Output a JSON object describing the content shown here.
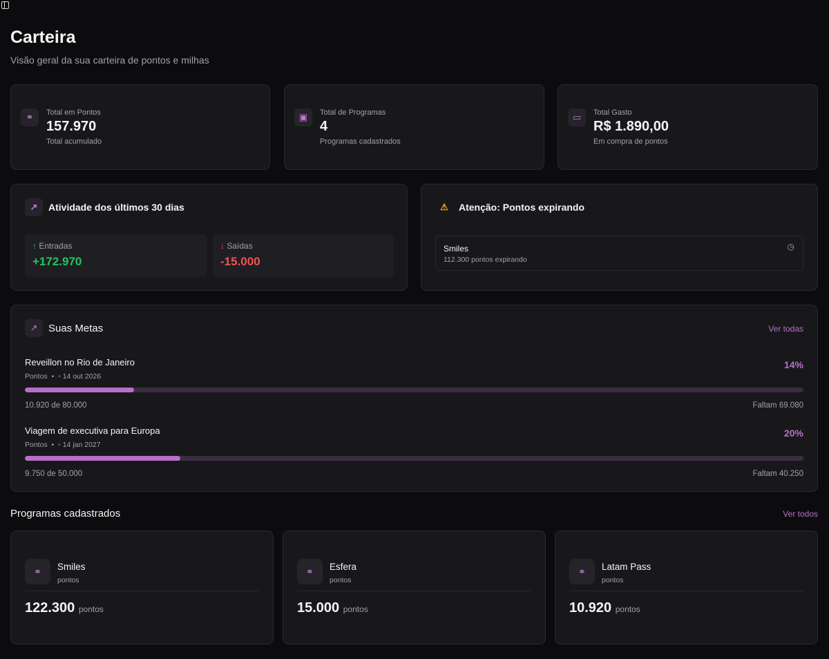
{
  "page": {
    "title": "Carteira",
    "subtitle": "Visão geral da sua carteira de pontos e milhas"
  },
  "stats": [
    {
      "label": "Total em Pontos",
      "value": "157.970",
      "sub": "Total acumulado",
      "icon": "coins-icon"
    },
    {
      "label": "Total de Programas",
      "value": "4",
      "sub": "Programas cadastrados",
      "icon": "wallet-icon"
    },
    {
      "label": "Total Gasto",
      "value": "R$ 1.890,00",
      "sub": "Em compra de pontos",
      "icon": "banknote-icon"
    }
  ],
  "activity": {
    "title": "Atividade dos últimos 30 dias",
    "in_label": "Entradas",
    "in_value": "+172.970",
    "out_label": "Saídas",
    "out_value": "-15.000",
    "in_color": "#22c55e",
    "out_color": "#f05252"
  },
  "expiring": {
    "title": "Atenção: Pontos expirando",
    "items": [
      {
        "name": "Smiles",
        "detail": "112.300 pontos expirando"
      }
    ]
  },
  "goals": {
    "title": "Suas Metas",
    "link": "Ver todas",
    "items": [
      {
        "name": "Reveillon no Rio de Janeiro",
        "type": "Pontos",
        "date": "14 out 2026",
        "percent": "14%",
        "progress": 14,
        "current": "10.920 de 80.000",
        "remaining": "Faltam 69.080"
      },
      {
        "name": "Viagem de executiva para Europa",
        "type": "Pontos",
        "date": "14 jan 2027",
        "percent": "20%",
        "progress": 20,
        "current": "9.750 de 50.000",
        "remaining": "Faltam 40.250"
      }
    ]
  },
  "programs": {
    "title": "Programas cadastrados",
    "link": "Ver todos",
    "items": [
      {
        "name": "Smiles",
        "unit": "pontos",
        "value": "122.300",
        "value_unit": "pontos"
      },
      {
        "name": "Esfera",
        "unit": "pontos",
        "value": "15.000",
        "value_unit": "pontos"
      },
      {
        "name": "Latam Pass",
        "unit": "pontos",
        "value": "10.920",
        "value_unit": "pontos"
      }
    ]
  }
}
